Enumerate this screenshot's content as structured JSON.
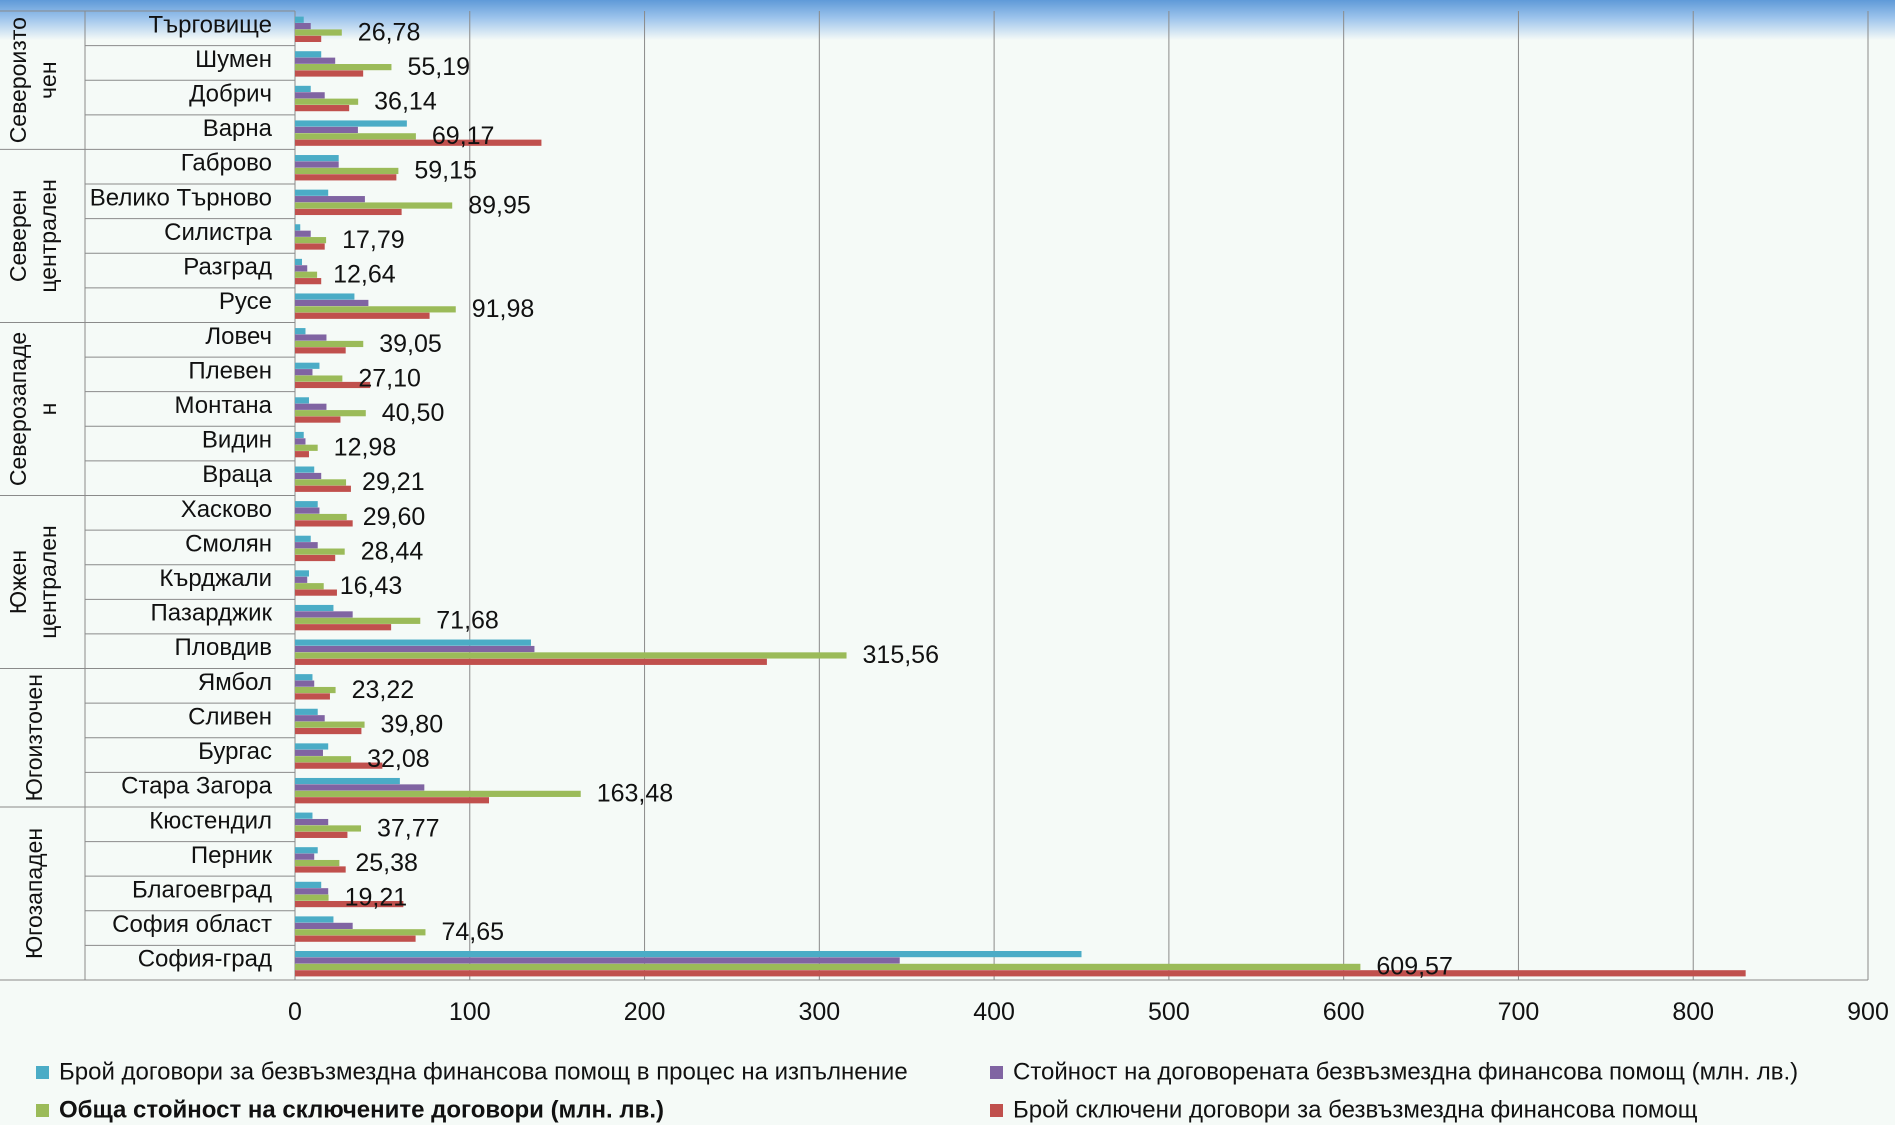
{
  "chart_data": {
    "type": "bar",
    "orientation": "horizontal",
    "title": "",
    "xlabel": "",
    "ylabel": "",
    "xlim": [
      0,
      900
    ],
    "x_ticks": [
      "0",
      "100",
      "200",
      "300",
      "400",
      "500",
      "600",
      "700",
      "800",
      "900"
    ],
    "grid": "vertical",
    "legend_position": "bottom",
    "groups": [
      {
        "label": "Североизточен",
        "lines": [
          "Североизто",
          "чен"
        ],
        "size": 4
      },
      {
        "label": "Северен централен",
        "lines": [
          "Северен",
          "централен"
        ],
        "size": 5
      },
      {
        "label": "Северозападен",
        "lines": [
          "Северозападе",
          "н"
        ],
        "size": 5
      },
      {
        "label": "Южен централен",
        "lines": [
          "Южен",
          "централен"
        ],
        "size": 5
      },
      {
        "label": "Югоизточен",
        "lines": [
          "Югоизточен"
        ],
        "size": 4
      },
      {
        "label": "Югозападен",
        "lines": [
          "Югозападен"
        ],
        "size": 5
      }
    ],
    "categories": [
      "Търговище",
      "Шумен",
      "Добрич",
      "Варна",
      "Габрово",
      "Велико Търново",
      "Силистра",
      "Разград",
      "Русе",
      "Ловеч",
      "Плевен",
      "Монтана",
      "Видин",
      "Враца",
      "Хасково",
      "Смолян",
      "Кърджали",
      "Пазарджик",
      "Пловдив",
      "Ямбол",
      "Сливен",
      "Бургас",
      "Стара Загора",
      "Кюстендил",
      "Перник",
      "Благоевград",
      "София област",
      "София-град"
    ],
    "series": [
      {
        "name": "Брой договори за безвъзмездна финансова помощ в процес на изпълнение",
        "color": "#4bacc6",
        "values": [
          5,
          15,
          9,
          64,
          25,
          19,
          3,
          4,
          34,
          6,
          14,
          8,
          5,
          11,
          13,
          9,
          8,
          22,
          135,
          10,
          13,
          19,
          60,
          10,
          13,
          15,
          22,
          450
        ]
      },
      {
        "name": "Стойност на договорената безвъзмездна финансова помощ (млн. лв.)",
        "color": "#8064a2",
        "values": [
          9,
          23,
          17,
          36,
          25,
          40,
          9,
          7,
          42,
          18,
          10,
          18,
          6,
          15,
          14,
          13,
          7,
          33,
          137,
          11,
          17,
          16,
          74,
          19,
          11,
          19,
          33,
          346
        ]
      },
      {
        "name": "Обща стойност на сключените договори (млн. лв.)",
        "color": "#9bbb59",
        "values": [
          26.78,
          55.19,
          36.14,
          69.17,
          59.15,
          89.95,
          17.79,
          12.64,
          91.98,
          39.05,
          27.1,
          40.5,
          12.98,
          29.21,
          29.6,
          28.44,
          16.43,
          71.68,
          315.56,
          23.22,
          39.8,
          32.08,
          163.48,
          37.77,
          25.38,
          19.21,
          74.65,
          609.57
        ]
      },
      {
        "name": "Брой сключени договори за безвъзмездна финансова помощ",
        "color": "#c0504d",
        "values": [
          15,
          39,
          31,
          141,
          58,
          61,
          17,
          15,
          77,
          29,
          43,
          26,
          8,
          32,
          33,
          23,
          24,
          55,
          270,
          20,
          38,
          50,
          111,
          30,
          29,
          62,
          69,
          830
        ]
      }
    ],
    "data_labels": [
      "26,78",
      "55,19",
      "36,14",
      "69,17",
      "59,15",
      "89,95",
      "17,79",
      "12,64",
      "91,98",
      "39,05",
      "27,10",
      "40,50",
      "12,98",
      "29,21",
      "29,60",
      "28,44",
      "16,43",
      "71,68",
      "315,56",
      "23,22",
      "39,80",
      "32,08",
      "163,48",
      "37,77",
      "25,38",
      "19,21",
      "74,65",
      "609,57"
    ]
  }
}
